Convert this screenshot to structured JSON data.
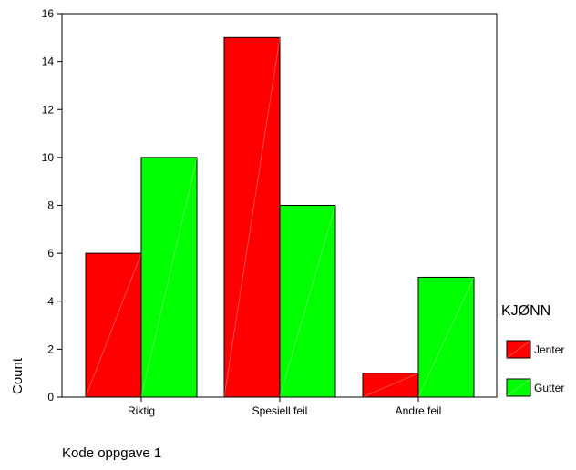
{
  "chart_data": {
    "type": "bar",
    "categories": [
      "Riktig",
      "Spesiell feil",
      "Andre feil"
    ],
    "series": [
      {
        "name": "Jenter",
        "values": [
          6,
          15,
          1
        ],
        "color": "#ff0000"
      },
      {
        "name": "Gutter",
        "values": [
          10,
          8,
          5
        ],
        "color": "#00ff00"
      }
    ],
    "xlabel": "Kode oppgave 1",
    "ylabel": "Count",
    "ylim": [
      0,
      16
    ],
    "yticks": [
      0,
      2,
      4,
      6,
      8,
      10,
      12,
      14,
      16
    ],
    "legend_title": "KJØNN",
    "legend_position": "right",
    "grid": false
  }
}
